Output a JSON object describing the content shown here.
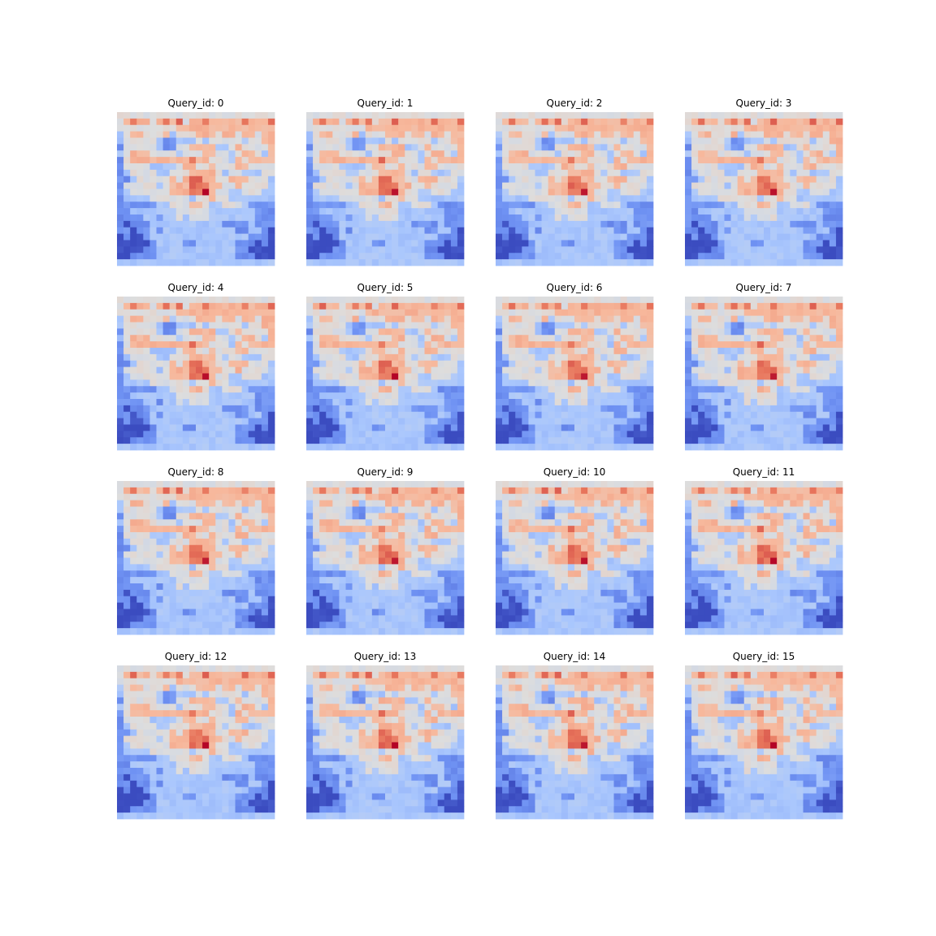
{
  "figure": {
    "background": "#ffffff",
    "colormap": "coolwarm",
    "colormap_stops": [
      "#3b4cc0",
      "#6f92f3",
      "#aac7fd",
      "#dddddd",
      "#f7b89c",
      "#e7745b",
      "#b40426"
    ],
    "panel_title_prefix": "Query_id: "
  },
  "chart_data": {
    "type": "heatmap",
    "layout": "4x4 grid of heatmaps",
    "grid_size": [
      24,
      24
    ],
    "axes": "off",
    "value_range": [
      0,
      1
    ],
    "panels": [
      {
        "title": "Query_id: 0",
        "query_id": 0
      },
      {
        "title": "Query_id: 1",
        "query_id": 1
      },
      {
        "title": "Query_id: 2",
        "query_id": 2
      },
      {
        "title": "Query_id: 3",
        "query_id": 3
      },
      {
        "title": "Query_id: 4",
        "query_id": 4
      },
      {
        "title": "Query_id: 5",
        "query_id": 5
      },
      {
        "title": "Query_id: 6",
        "query_id": 6
      },
      {
        "title": "Query_id: 7",
        "query_id": 7
      },
      {
        "title": "Query_id: 8",
        "query_id": 8
      },
      {
        "title": "Query_id: 9",
        "query_id": 9
      },
      {
        "title": "Query_id: 10",
        "query_id": 10
      },
      {
        "title": "Query_id: 11",
        "query_id": 11
      },
      {
        "title": "Query_id: 12",
        "query_id": 12
      },
      {
        "title": "Query_id: 13",
        "query_id": 13
      },
      {
        "title": "Query_id: 14",
        "query_id": 14
      },
      {
        "title": "Query_id: 15",
        "query_id": 15
      }
    ],
    "base_pattern": [
      "444444444444444444444444",
      "456554565645565555565556",
      "444444444555555555555555",
      "345544453444555455455455",
      "344444322333434444434455",
      "244444322445555334544445",
      "345554444344455443455435",
      "245555555556554443545555",
      "244443333455445444554444",
      "234444334445555434433344",
      "223444445456655445554443",
      "244444345556665544544443",
      "234444445556675443344433",
      "233334444443445443333333",
      "222222334445543344432222",
      "223333333444443333333222",
      "222233233434443333333222",
      "212223333333333322223222",
      "221223233333333333223321",
      "121123333333333333332221",
      "111112333322333333222121",
      "111122333333333333221111",
      "112222333333333333222111",
      "333333333333333333333333"
    ]
  }
}
